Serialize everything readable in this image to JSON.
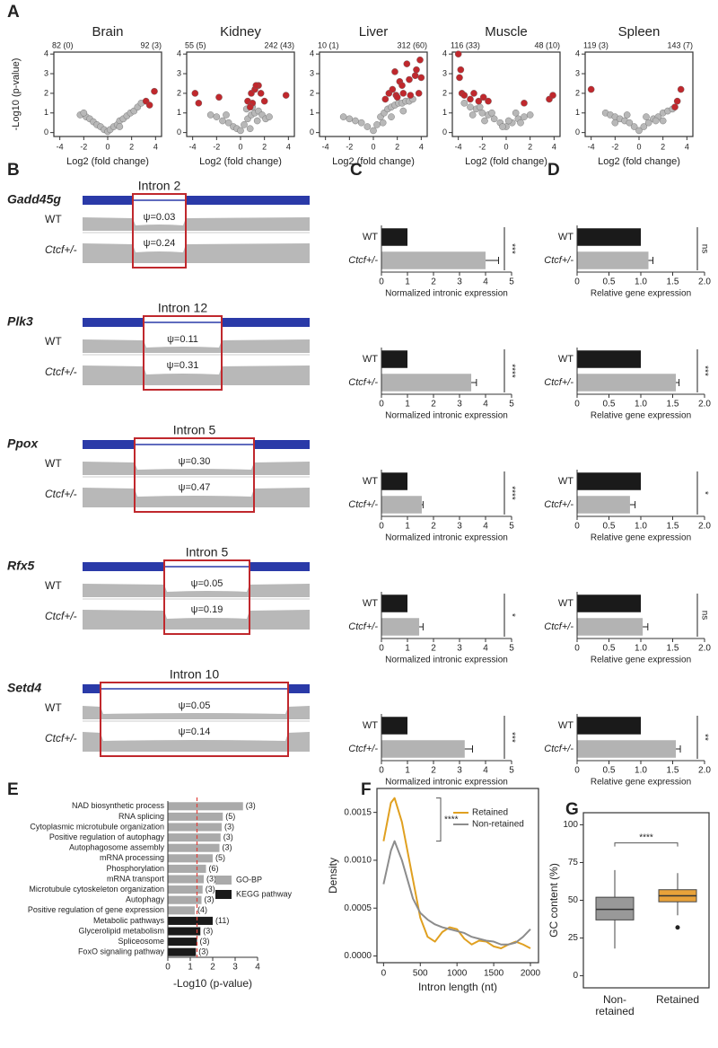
{
  "panel_labels": [
    "A",
    "B",
    "C",
    "D",
    "E",
    "F",
    "G"
  ],
  "track_labels": [
    "WT",
    "Ctcf+/-"
  ],
  "tracks": [
    {
      "gene": "Gadd45g",
      "intron": "Intron 2",
      "psi_wt": "ψ=0.03",
      "psi_ctcf": "ψ=0.24"
    },
    {
      "gene": "Plk3",
      "intron": "Intron 12",
      "psi_wt": "ψ=0.11",
      "psi_ctcf": "ψ=0.31"
    },
    {
      "gene": "Ppox",
      "intron": "Intron 5",
      "psi_wt": "ψ=0.30",
      "psi_ctcf": "ψ=0.47"
    },
    {
      "gene": "Rfx5",
      "intron": "Intron 5",
      "psi_wt": "ψ=0.05",
      "psi_ctcf": "ψ=0.19"
    },
    {
      "gene": "Setd4",
      "intron": "Intron 10",
      "psi_wt": "ψ=0.05",
      "psi_ctcf": "ψ=0.14"
    }
  ],
  "chart_data": [
    {
      "type": "scatter",
      "title": "Brain",
      "left_count": "82 (0)",
      "right_count": "92 (3)",
      "xlabel": "Log2 (fold change)",
      "ylabel": "-Log10 (p-value)",
      "xlim": [
        -4.5,
        4.5
      ],
      "xticks": [
        -4,
        -2,
        0,
        2,
        4
      ],
      "ylim": [
        -0.2,
        4.1
      ],
      "yticks": [
        0,
        1,
        2,
        3,
        4
      ],
      "series": [
        {
          "color": "#b8b8b8",
          "x": [
            -2.3,
            -1.8,
            -1.5,
            -1.2,
            -0.9,
            -0.6,
            -0.3,
            0,
            0.2,
            0.5,
            0.8,
            1.0,
            1.3,
            1.6,
            1.9,
            2.2,
            2.5,
            2.8,
            -2.0,
            1.0
          ],
          "values": [
            0.9,
            0.8,
            0.7,
            0.55,
            0.4,
            0.3,
            0.15,
            0.05,
            0.15,
            0.3,
            0.4,
            0.6,
            0.7,
            0.85,
            1.0,
            1.1,
            1.3,
            1.5,
            1.0,
            0.3
          ]
        },
        {
          "color": "#c0282d",
          "x": [
            3.2,
            3.5,
            3.9
          ],
          "values": [
            1.6,
            1.4,
            2.1
          ]
        }
      ]
    },
    {
      "type": "scatter",
      "title": "Kidney",
      "left_count": "55 (5)",
      "right_count": "242 (43)",
      "xlabel": "Log2 (fold change)",
      "xlim": [
        -4.5,
        4.5
      ],
      "xticks": [
        -4,
        -2,
        0,
        2,
        4
      ],
      "ylim": [
        -0.2,
        4.1
      ],
      "yticks": [
        0,
        1,
        2,
        3,
        4
      ],
      "series": [
        {
          "color": "#b8b8b8",
          "x": [
            -2.5,
            -2,
            -1.5,
            -1,
            -0.6,
            -0.3,
            0,
            0.3,
            0.6,
            0.9,
            1.2,
            1.5,
            1.8,
            2.1,
            2.4,
            0.5,
            1.0,
            1.4,
            -1.2,
            0.8
          ],
          "values": [
            0.9,
            0.8,
            0.6,
            0.5,
            0.3,
            0.2,
            0.1,
            0.4,
            0.7,
            0.9,
            1.0,
            1.1,
            0.9,
            0.7,
            0.8,
            1.2,
            1.3,
            0.6,
            0.9,
            0.2
          ]
        },
        {
          "color": "#c0282d",
          "x": [
            -3.8,
            -3.5,
            -1.8,
            0.6,
            0.9,
            1.2,
            1.5,
            1.7,
            2.0,
            1.0,
            3.8,
            0.8,
            1.3
          ],
          "values": [
            2.0,
            1.5,
            1.8,
            1.6,
            2.0,
            2.2,
            2.4,
            2.0,
            1.6,
            1.5,
            1.9,
            1.3,
            2.4
          ]
        }
      ]
    },
    {
      "type": "scatter",
      "title": "Liver",
      "left_count": "10 (1)",
      "right_count": "312 (60)",
      "xlabel": "Log2 (fold change)",
      "xlim": [
        -4.5,
        4.5
      ],
      "xticks": [
        -4,
        -2,
        0,
        2,
        4
      ],
      "ylim": [
        -0.2,
        4.1
      ],
      "yticks": [
        0,
        1,
        2,
        3,
        4
      ],
      "series": [
        {
          "color": "#b8b8b8",
          "x": [
            -2.5,
            -2,
            -1.5,
            -1,
            -0.5,
            0,
            0.3,
            0.6,
            0.9,
            1.2,
            1.5,
            1.8,
            2.1,
            2.4,
            2.7,
            3.0,
            3.3,
            0.8,
            1.5,
            2.5
          ],
          "values": [
            0.8,
            0.7,
            0.6,
            0.5,
            0.3,
            0.1,
            0.4,
            0.8,
            1.0,
            1.2,
            1.3,
            1.4,
            1.5,
            1.5,
            1.6,
            1.6,
            1.7,
            0.5,
            0.8,
            1.1
          ]
        },
        {
          "color": "#c0282d",
          "x": [
            1.0,
            1.3,
            1.6,
            1.9,
            2.2,
            2.5,
            2.8,
            3.1,
            3.5,
            3.8,
            1.8,
            2.4,
            3.0,
            3.9,
            4.0,
            3.6,
            2.0
          ],
          "values": [
            1.7,
            2.0,
            2.2,
            1.9,
            2.6,
            2.0,
            3.5,
            1.9,
            2.9,
            2.0,
            3.1,
            2.4,
            2.7,
            3.7,
            2.8,
            3.2,
            1.8
          ]
        }
      ]
    },
    {
      "type": "scatter",
      "title": "Muscle",
      "left_count": "116 (33)",
      "right_count": "48 (10)",
      "xlabel": "Log2 (fold change)",
      "xlim": [
        -4.5,
        4.5
      ],
      "xticks": [
        -4,
        -2,
        0,
        2,
        4
      ],
      "ylim": [
        -0.2,
        4.1
      ],
      "yticks": [
        0,
        1,
        2,
        3,
        4
      ],
      "series": [
        {
          "color": "#b8b8b8",
          "x": [
            -3.5,
            -3,
            -2.5,
            -2,
            -1.5,
            -1,
            -0.5,
            0,
            0.5,
            1,
            1.5,
            2,
            -2.2,
            -1.2,
            0.2,
            0.8,
            -0.3,
            1.2,
            -1.8,
            -2.8
          ],
          "values": [
            1.5,
            1.3,
            1.2,
            1.0,
            0.9,
            0.7,
            0.5,
            0.3,
            0.5,
            0.7,
            0.8,
            0.9,
            1.3,
            1.0,
            0.6,
            1.0,
            0.3,
            0.5,
            0.6,
            0.9
          ]
        },
        {
          "color": "#c0282d",
          "x": [
            -4,
            -3.8,
            -3.7,
            -3.5,
            -3.0,
            -2.7,
            -2.3,
            -1.9,
            -1.5,
            -3.9,
            3.6,
            3.9,
            1.5
          ],
          "values": [
            4.0,
            3.2,
            2.0,
            1.9,
            1.7,
            2.0,
            1.6,
            1.8,
            1.6,
            2.8,
            1.7,
            1.9,
            1.5
          ]
        }
      ]
    },
    {
      "type": "scatter",
      "title": "Spleen",
      "left_count": "119 (3)",
      "right_count": "143 (7)",
      "xlabel": "Log2 (fold change)",
      "xlim": [
        -4.5,
        4.5
      ],
      "xticks": [
        -4,
        -2,
        0,
        2,
        4
      ],
      "ylim": [
        -0.2,
        4.1
      ],
      "yticks": [
        0,
        1,
        2,
        3,
        4
      ],
      "series": [
        {
          "color": "#b8b8b8",
          "x": [
            -2.8,
            -2.4,
            -2,
            -1.6,
            -1.2,
            -0.8,
            -0.4,
            0,
            0.4,
            0.8,
            1.2,
            1.6,
            2,
            2.4,
            2.8,
            -1.0,
            0.6,
            1.4,
            -2.0,
            2.0
          ],
          "values": [
            1.0,
            0.9,
            0.8,
            0.7,
            0.6,
            0.5,
            0.3,
            0.1,
            0.3,
            0.5,
            0.7,
            0.8,
            1.0,
            1.1,
            1.2,
            0.9,
            0.8,
            0.6,
            0.5,
            0.6
          ]
        },
        {
          "color": "#c0282d",
          "x": [
            -4,
            3.0,
            3.2,
            3.5
          ],
          "values": [
            2.2,
            1.3,
            1.6,
            2.2
          ]
        }
      ]
    },
    {
      "type": "bar",
      "orientation": "horizontal",
      "categories": [
        "WT",
        "Ctcf+/-"
      ],
      "values": [
        1,
        4
      ],
      "errors": [
        0,
        0.5
      ],
      "colors": [
        "#1a1a1a",
        "#b3b3b3"
      ],
      "xlim": [
        0,
        5
      ],
      "xticks": [
        0,
        1,
        2,
        3,
        4,
        5
      ],
      "xlabel": "Normalized intronic expression",
      "significance": "***"
    },
    {
      "type": "bar",
      "orientation": "horizontal",
      "categories": [
        "WT",
        "Ctcf+/-"
      ],
      "values": [
        1,
        3.45
      ],
      "errors": [
        0,
        0.2
      ],
      "colors": [
        "#1a1a1a",
        "#b3b3b3"
      ],
      "xlim": [
        0,
        5
      ],
      "xticks": [
        0,
        1,
        2,
        3,
        4,
        5
      ],
      "xlabel": "Normalized intronic expression",
      "significance": "****"
    },
    {
      "type": "bar",
      "orientation": "horizontal",
      "categories": [
        "WT",
        "Ctcf+/-"
      ],
      "values": [
        1,
        1.55
      ],
      "errors": [
        0,
        0.05
      ],
      "colors": [
        "#1a1a1a",
        "#b3b3b3"
      ],
      "xlim": [
        0,
        5
      ],
      "xticks": [
        0,
        1,
        2,
        3,
        4,
        5
      ],
      "xlabel": "Normalized intronic expression",
      "significance": "****"
    },
    {
      "type": "bar",
      "orientation": "horizontal",
      "categories": [
        "WT",
        "Ctcf+/-"
      ],
      "values": [
        1,
        1.45
      ],
      "errors": [
        0,
        0.15
      ],
      "colors": [
        "#1a1a1a",
        "#b3b3b3"
      ],
      "xlim": [
        0,
        5
      ],
      "xticks": [
        0,
        1,
        2,
        3,
        4,
        5
      ],
      "xlabel": "Normalized intronic expression",
      "significance": "*"
    },
    {
      "type": "bar",
      "orientation": "horizontal",
      "categories": [
        "WT",
        "Ctcf+/-"
      ],
      "values": [
        1,
        3.2
      ],
      "errors": [
        0,
        0.3
      ],
      "colors": [
        "#1a1a1a",
        "#b3b3b3"
      ],
      "xlim": [
        0,
        5
      ],
      "xticks": [
        0,
        1,
        2,
        3,
        4,
        5
      ],
      "xlabel": "Normalized intronic expression",
      "significance": "***"
    },
    {
      "type": "bar",
      "orientation": "horizontal",
      "categories": [
        "WT",
        "Ctcf+/-"
      ],
      "values": [
        1,
        1.12
      ],
      "errors": [
        0,
        0.07
      ],
      "colors": [
        "#1a1a1a",
        "#b3b3b3"
      ],
      "xlim": [
        0,
        2
      ],
      "xticks": [
        0,
        0.5,
        {
          "value": 1,
          "label": "1.0"
        },
        1.5,
        {
          "value": 2,
          "label": "2.0"
        }
      ],
      "xlabel": "Relative gene expression",
      "significance": "ns"
    },
    {
      "type": "bar",
      "orientation": "horizontal",
      "categories": [
        "WT",
        "Ctcf+/-"
      ],
      "values": [
        1,
        1.55
      ],
      "errors": [
        0,
        0.05
      ],
      "colors": [
        "#1a1a1a",
        "#b3b3b3"
      ],
      "xlim": [
        0,
        2
      ],
      "xticks": [
        0,
        0.5,
        {
          "value": 1,
          "label": "1.0"
        },
        1.5,
        {
          "value": 2,
          "label": "2.0"
        }
      ],
      "xlabel": "Relative gene expression",
      "significance": "***"
    },
    {
      "type": "bar",
      "orientation": "horizontal",
      "categories": [
        "WT",
        "Ctcf+/-"
      ],
      "values": [
        1,
        0.83
      ],
      "errors": [
        0,
        0.08
      ],
      "colors": [
        "#1a1a1a",
        "#b3b3b3"
      ],
      "xlim": [
        0,
        2
      ],
      "xticks": [
        0,
        0.5,
        {
          "value": 1,
          "label": "1.0"
        },
        1.5,
        {
          "value": 2,
          "label": "2.0"
        }
      ],
      "xlabel": "Relative gene expression",
      "significance": "*"
    },
    {
      "type": "bar",
      "orientation": "horizontal",
      "categories": [
        "WT",
        "Ctcf+/-"
      ],
      "values": [
        1,
        1.03
      ],
      "errors": [
        0,
        0.08
      ],
      "colors": [
        "#1a1a1a",
        "#b3b3b3"
      ],
      "xlim": [
        0,
        2
      ],
      "xticks": [
        0,
        0.5,
        {
          "value": 1,
          "label": "1.0"
        },
        1.5,
        {
          "value": 2,
          "label": "2.0"
        }
      ],
      "xlabel": "Relative gene expression",
      "significance": "ns"
    },
    {
      "type": "bar",
      "orientation": "horizontal",
      "categories": [
        "WT",
        "Ctcf+/-"
      ],
      "values": [
        1,
        1.55
      ],
      "errors": [
        0,
        0.07
      ],
      "colors": [
        "#1a1a1a",
        "#b3b3b3"
      ],
      "xlim": [
        0,
        2
      ],
      "xticks": [
        0,
        0.5,
        {
          "value": 1,
          "label": "1.0"
        },
        1.5,
        {
          "value": 2,
          "label": "2.0"
        }
      ],
      "xlabel": "Relative gene expression",
      "significance": "**"
    },
    {
      "type": "bar",
      "orientation": "horizontal",
      "categories": [
        "NAD biosynthetic process",
        "RNA splicing",
        "Cytoplasmic microtubule organization",
        "Positive regulation of autophagy",
        "Autophagosome assembly",
        "mRNA processing",
        "Phosphorylation",
        "mRNA transport",
        "Microtubule cytoskeleton organization",
        "Autophagy",
        "Positive regulation of gene expression",
        "Metabolic pathways",
        "Glycerolipid metabolism",
        "Spliceosome",
        "FoxO signaling pathway"
      ],
      "values": [
        3.35,
        2.45,
        2.4,
        2.35,
        2.3,
        2.0,
        1.7,
        1.6,
        1.55,
        1.5,
        1.2,
        2.0,
        1.45,
        1.3,
        1.25
      ],
      "annotations": [
        "(3)",
        "(5)",
        "(3)",
        "(3)",
        "(3)",
        "(5)",
        "(6)",
        "(3)",
        "(3)",
        "(3)",
        "(4)",
        "(11)",
        "(3)",
        "(3)",
        "(3)"
      ],
      "colors": [
        "#aaaaaa",
        "#aaaaaa",
        "#aaaaaa",
        "#aaaaaa",
        "#aaaaaa",
        "#aaaaaa",
        "#aaaaaa",
        "#aaaaaa",
        "#aaaaaa",
        "#aaaaaa",
        "#aaaaaa",
        "#1a1a1a",
        "#1a1a1a",
        "#1a1a1a",
        "#1a1a1a"
      ],
      "xlim": [
        0,
        4
      ],
      "xticks": [
        0,
        1,
        2,
        3,
        4
      ],
      "xlabel": "-Log10 (p-value)",
      "threshold": 1.3,
      "threshold_color": "#e0403a",
      "legend": [
        {
          "name": "GO-BP",
          "color": "#aaaaaa"
        },
        {
          "name": "KEGG pathway",
          "color": "#1a1a1a"
        }
      ]
    },
    {
      "type": "line",
      "xlabel": "Intron length (nt)",
      "ylabel": "Density",
      "annotation": "****",
      "xlim": [
        -90,
        2110
      ],
      "xticks": [
        0,
        500,
        1000,
        1500,
        2000
      ],
      "ylim": [
        -7e-05,
        0.00175
      ],
      "yticks": [
        {
          "value": 0,
          "label": "0.0000"
        },
        0.0005,
        {
          "value": 0.001,
          "label": "0.0010"
        },
        0.0015
      ],
      "x": [
        0,
        100,
        150,
        250,
        400,
        500,
        600,
        700,
        800,
        900,
        1000,
        1100,
        1200,
        1300,
        1400,
        1500,
        1600,
        1700,
        1800,
        1900,
        2000
      ],
      "series": [
        {
          "name": "Retained",
          "color": "#e0a020",
          "values": [
            0.0012,
            0.0016,
            0.00165,
            0.0014,
            0.0008,
            0.0004,
            0.0002,
            0.00015,
            0.00025,
            0.0003,
            0.00028,
            0.00018,
            0.00012,
            0.00016,
            0.00015,
            0.0001,
            8e-05,
            0.00012,
            0.00015,
            0.00012,
            8e-05
          ]
        },
        {
          "name": "Non-retained",
          "color": "#8c8c8c",
          "values": [
            0.00075,
            0.0011,
            0.0012,
            0.001,
            0.0006,
            0.00045,
            0.00038,
            0.00033,
            0.0003,
            0.00028,
            0.00026,
            0.00024,
            0.0002,
            0.00018,
            0.00016,
            0.00015,
            0.00012,
            0.00012,
            0.00014,
            0.0002,
            0.00028
          ]
        }
      ]
    },
    {
      "type": "box",
      "ylabel": "GC content (%)",
      "annotation": "****",
      "categories": [
        [
          "Non-",
          "retained"
        ],
        [
          "Retained"
        ]
      ],
      "ylim": [
        -8,
        108
      ],
      "yticks": [
        0,
        25,
        50,
        75,
        100
      ],
      "series": [
        {
          "color": "#999999",
          "min": 18,
          "q1": 37,
          "median": 44,
          "q3": 52,
          "max": 70,
          "outliers": []
        },
        {
          "color": "#e8a23a",
          "min": 40,
          "q1": 49,
          "median": 53,
          "q3": 57,
          "max": 68,
          "outliers": [
            32
          ]
        }
      ]
    }
  ]
}
